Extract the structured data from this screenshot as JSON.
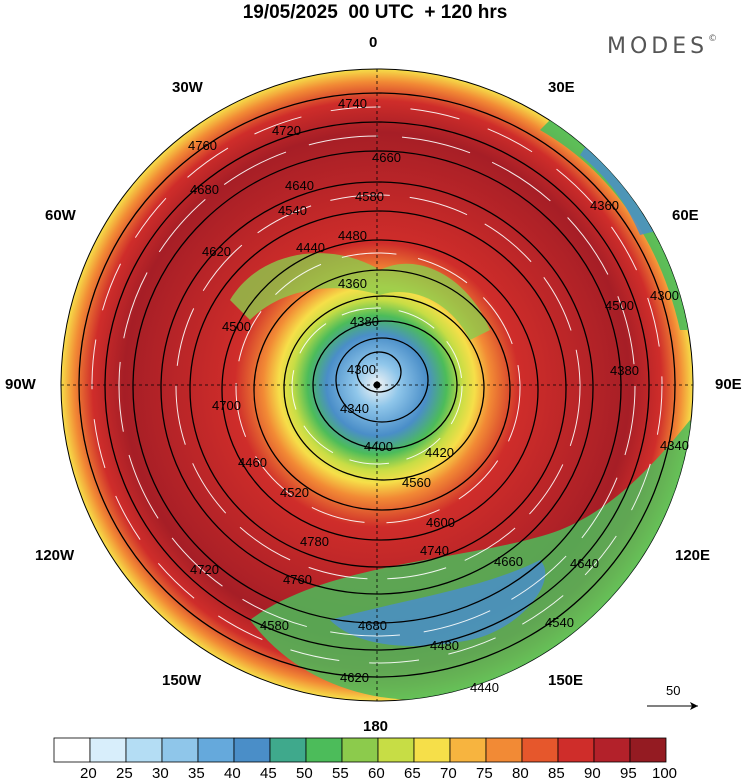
{
  "title": "19/05/2025  00 UTC  + 120 hrs",
  "brand": "MODES",
  "brand_mark": "©",
  "longitude_labels": {
    "top": "0",
    "top_left": "30W",
    "top_right": "30E",
    "left_upper": "60W",
    "right_upper": "60E",
    "left": "90W",
    "right": "90E",
    "left_lower": "120W",
    "right_lower": "120E",
    "bottom_left": "150W",
    "bottom_right": "150E",
    "bottom": "180"
  },
  "reference_vector": "50",
  "colorbar": {
    "labels": [
      "20",
      "25",
      "30",
      "35",
      "40",
      "45",
      "50",
      "55",
      "60",
      "65",
      "70",
      "75",
      "80",
      "85",
      "90",
      "95",
      "100"
    ],
    "colors": [
      "#ffffff",
      "#d8eefb",
      "#b4ddf4",
      "#8fc6ea",
      "#65a9dc",
      "#4a8ec8",
      "#3fa98c",
      "#4cbc5a",
      "#8ccb4c",
      "#c7dd45",
      "#f6df49",
      "#f7b43f",
      "#f28a35",
      "#e6572c",
      "#cf2d2a",
      "#b3212a",
      "#941b22"
    ]
  },
  "contour_labels": [
    "4740",
    "4720",
    "4760",
    "4660",
    "4640",
    "4580",
    "4680",
    "4480",
    "4540",
    "4620",
    "4440",
    "4360",
    "4500",
    "4380",
    "4300",
    "4340",
    "4400",
    "4420",
    "4460",
    "4520",
    "4560",
    "4600",
    "4700",
    "4780"
  ]
}
